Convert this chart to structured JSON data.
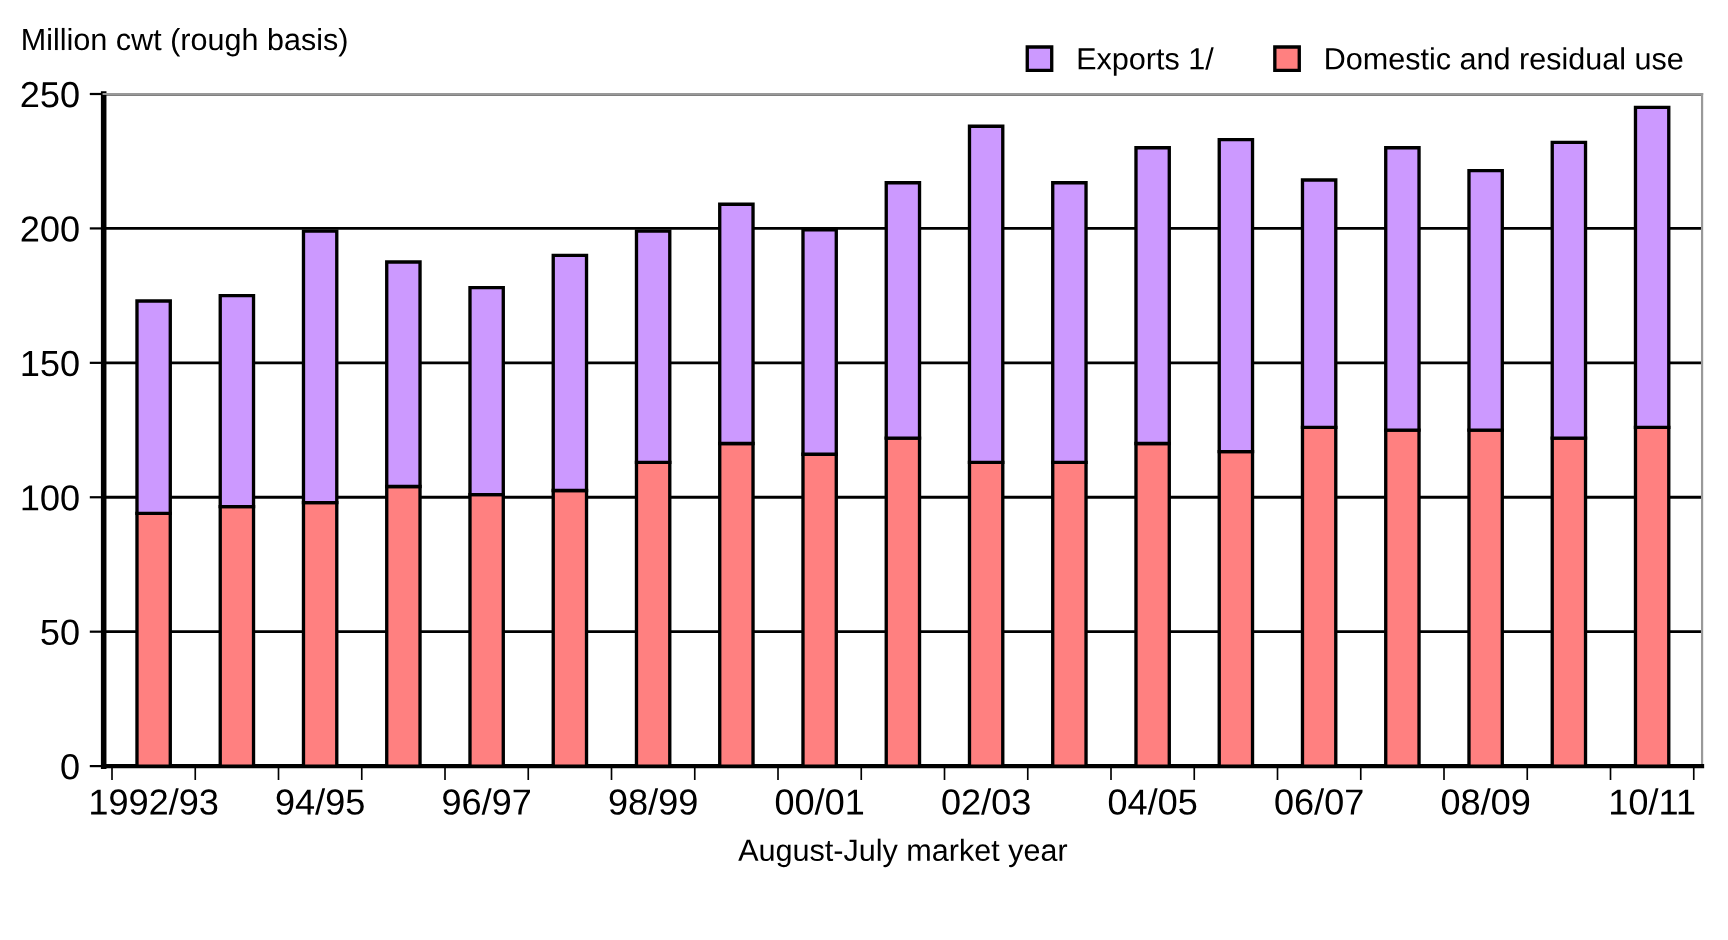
{
  "chart_data": {
    "type": "bar",
    "stacked": true,
    "ylabel": "Million cwt (rough basis)",
    "xlabel": "August-July market year",
    "categories": [
      "1992/93",
      null,
      "94/95",
      null,
      "96/97",
      null,
      "98/99",
      null,
      "00/01",
      null,
      "02/03",
      null,
      "04/05",
      null,
      "06/07",
      null,
      "08/09",
      null,
      "10/11"
    ],
    "series": [
      {
        "name": "Domestic and residual use",
        "color": "#ff8080",
        "values": [
          94,
          96.5,
          98,
          104,
          101,
          102.5,
          113,
          120,
          116,
          122,
          113,
          113,
          120,
          117,
          126,
          125,
          125,
          122,
          126
        ]
      },
      {
        "name": "Exports 1/",
        "color": "#cc99ff",
        "values": [
          79,
          78.5,
          101,
          83.5,
          77,
          87.5,
          86,
          89,
          83.5,
          95,
          125,
          104,
          110,
          116,
          92,
          105,
          96.5,
          110,
          119
        ]
      }
    ],
    "ylim": [
      0,
      250
    ],
    "yticks": [
      0,
      50,
      100,
      150,
      200,
      250
    ],
    "grid": "y",
    "legend": "top"
  }
}
